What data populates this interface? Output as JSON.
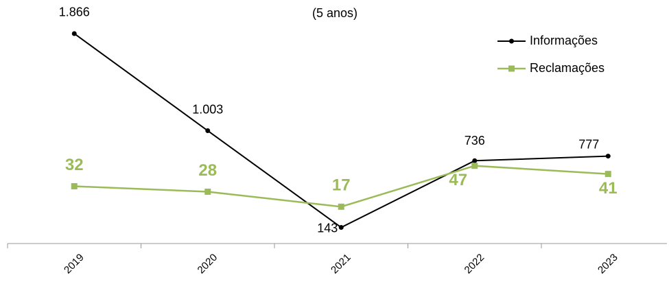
{
  "chart_data": {
    "type": "line",
    "title": "(5 anos)",
    "categories": [
      "2019",
      "2020",
      "2021",
      "2022",
      "2023"
    ],
    "series": [
      {
        "name": "Informações",
        "color": "#000000",
        "values": [
          1866,
          1003,
          143,
          736,
          777
        ],
        "value_labels": [
          "1.866",
          "1.003",
          "143",
          "736",
          "777"
        ]
      },
      {
        "name": "Reclamações",
        "color": "#9bbb59",
        "axis": "y2",
        "values": [
          32,
          28,
          17,
          47,
          41
        ]
      }
    ],
    "ylim": [
      0,
      2000
    ],
    "y2lim": [
      -10,
      155
    ],
    "legend": "top-right"
  }
}
